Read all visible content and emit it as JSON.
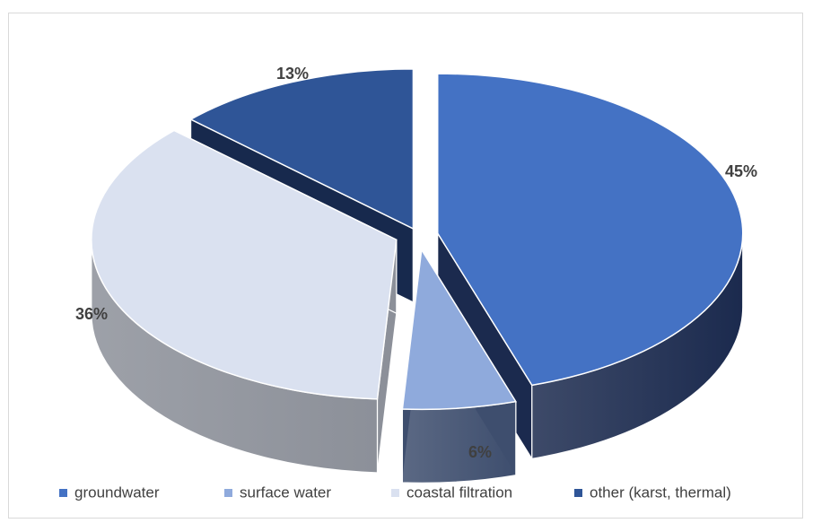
{
  "chart_data": {
    "type": "pie",
    "style": "3d-exploded",
    "slices": [
      {
        "name": "groundwater",
        "value": 45,
        "label": "45%",
        "color": "#4472C4",
        "side_color": "#1B2A4E"
      },
      {
        "name": "surface water",
        "value": 6,
        "label": "6%",
        "color": "#8FAADC",
        "side_color": "#3E4E6E"
      },
      {
        "name": "coastal filtration",
        "value": 36,
        "label": "36%",
        "color": "#DAE1F0",
        "side_color": "#8C9099"
      },
      {
        "name": "other (karst, thermal)",
        "value": 13,
        "label": "13%",
        "color": "#2F5597",
        "side_color": "#17294D"
      }
    ],
    "legend_position": "bottom"
  }
}
